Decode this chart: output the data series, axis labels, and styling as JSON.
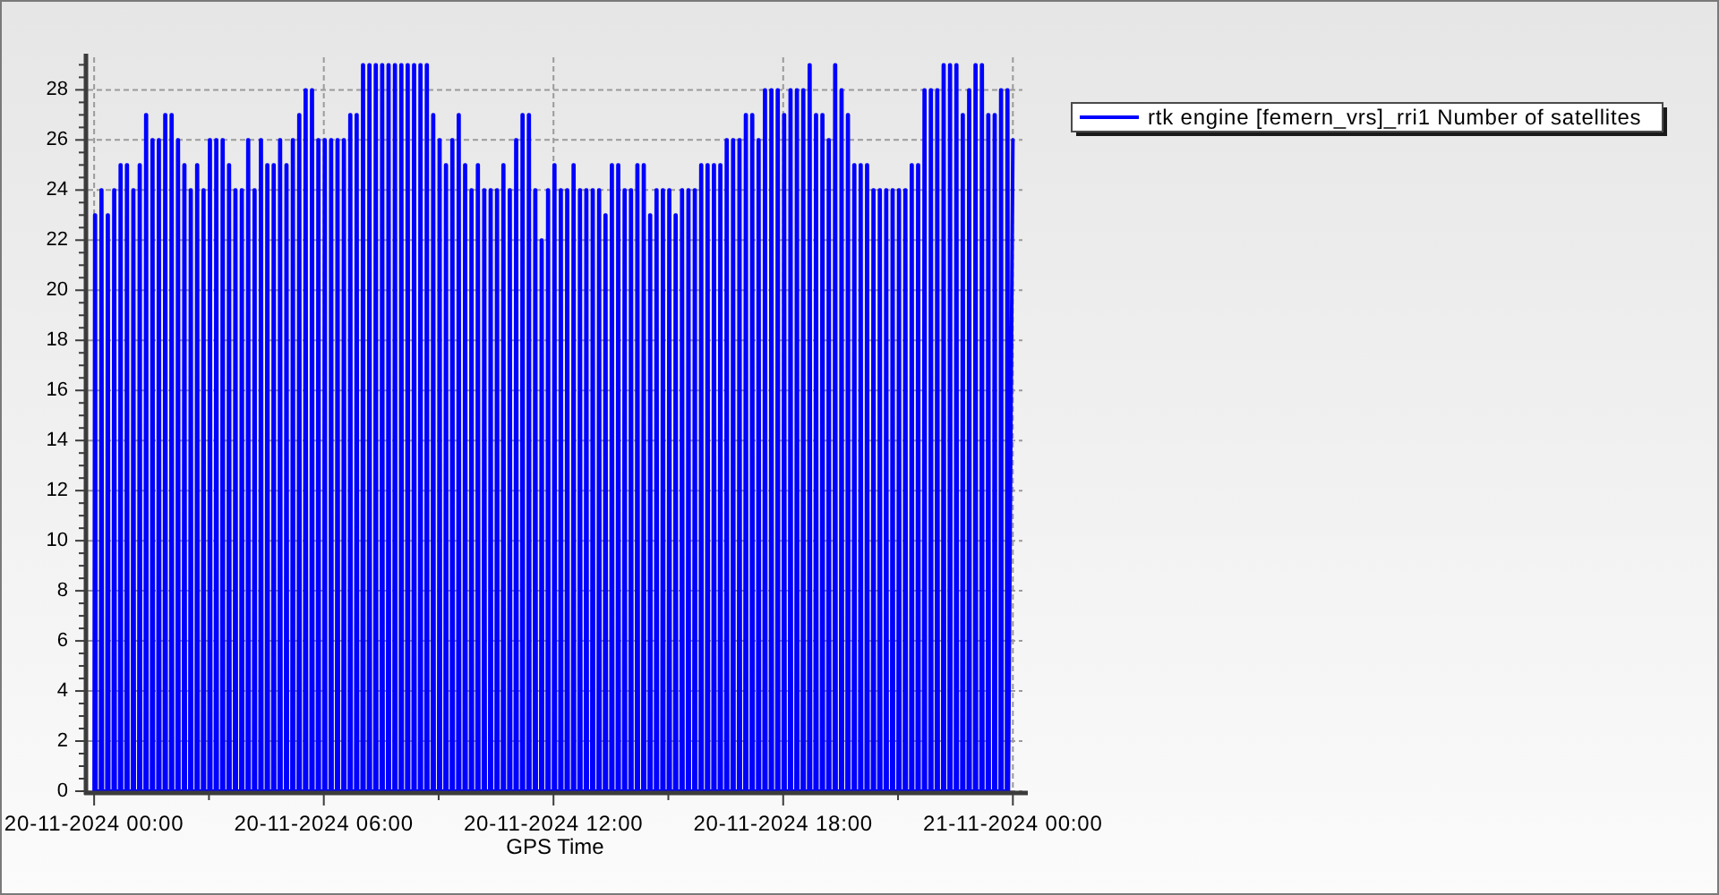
{
  "chart_data": {
    "type": "line",
    "xlabel": "GPS Time",
    "x": [
      "2024-11-20T00:00",
      "2024-11-20T00:01",
      "2024-11-20T00:02",
      "2024-11-20T00:03",
      "2024-11-20T00:10",
      "2024-11-20T00:11",
      "2024-11-20T00:12",
      "2024-11-20T00:13",
      "2024-11-20T00:20",
      "2024-11-20T00:21",
      "2024-11-20T00:22",
      "2024-11-20T00:23",
      "2024-11-20T00:30",
      "2024-11-20T00:31",
      "2024-11-20T00:32",
      "2024-11-20T00:33",
      "2024-11-20T00:40",
      "2024-11-20T00:41",
      "2024-11-20T00:42",
      "2024-11-20T00:43",
      "2024-11-20T00:50",
      "2024-11-20T00:51",
      "2024-11-20T00:52",
      "2024-11-20T00:53",
      "2024-11-20T01:00",
      "2024-11-20T01:01",
      "2024-11-20T01:02",
      "2024-11-20T01:03",
      "2024-11-20T01:10",
      "2024-11-20T01:11",
      "2024-11-20T01:12",
      "2024-11-20T01:13",
      "2024-11-20T01:20",
      "2024-11-20T01:21",
      "2024-11-20T01:22",
      "2024-11-20T01:23",
      "2024-11-20T01:30",
      "2024-11-20T01:31",
      "2024-11-20T01:32",
      "2024-11-20T01:33",
      "2024-11-20T01:40",
      "2024-11-20T01:41",
      "2024-11-20T01:42",
      "2024-11-20T01:43",
      "2024-11-20T01:50",
      "2024-11-20T01:51",
      "2024-11-20T01:52",
      "2024-11-20T01:53",
      "2024-11-20T02:00",
      "2024-11-20T02:01",
      "2024-11-20T02:02",
      "2024-11-20T02:03",
      "2024-11-20T02:10",
      "2024-11-20T02:11",
      "2024-11-20T02:12",
      "2024-11-20T02:13",
      "2024-11-20T02:20",
      "2024-11-20T02:21",
      "2024-11-20T02:22",
      "2024-11-20T02:23",
      "2024-11-20T02:30",
      "2024-11-20T02:31",
      "2024-11-20T02:32",
      "2024-11-20T02:33",
      "2024-11-20T02:40",
      "2024-11-20T02:41",
      "2024-11-20T02:42",
      "2024-11-20T02:43",
      "2024-11-20T02:50",
      "2024-11-20T02:51",
      "2024-11-20T02:52",
      "2024-11-20T02:53",
      "2024-11-20T03:00",
      "2024-11-20T03:01",
      "2024-11-20T03:02",
      "2024-11-20T03:03",
      "2024-11-20T03:10",
      "2024-11-20T03:11",
      "2024-11-20T03:12",
      "2024-11-20T03:13",
      "2024-11-20T03:20",
      "2024-11-20T03:21",
      "2024-11-20T03:22",
      "2024-11-20T03:23",
      "2024-11-20T03:30",
      "2024-11-20T03:31",
      "2024-11-20T03:32",
      "2024-11-20T03:33",
      "2024-11-20T03:40",
      "2024-11-20T03:41",
      "2024-11-20T03:42",
      "2024-11-20T03:43",
      "2024-11-20T03:50",
      "2024-11-20T03:51",
      "2024-11-20T03:52",
      "2024-11-20T03:53",
      "2024-11-20T04:00",
      "2024-11-20T04:01",
      "2024-11-20T04:02",
      "2024-11-20T04:03",
      "2024-11-20T04:10",
      "2024-11-20T04:11",
      "2024-11-20T04:12",
      "2024-11-20T04:13",
      "2024-11-20T04:20",
      "2024-11-20T04:21",
      "2024-11-20T04:22",
      "2024-11-20T04:23",
      "2024-11-20T04:30",
      "2024-11-20T04:31",
      "2024-11-20T04:32",
      "2024-11-20T04:33",
      "2024-11-20T04:40",
      "2024-11-20T04:41",
      "2024-11-20T04:42",
      "2024-11-20T04:43",
      "2024-11-20T04:50",
      "2024-11-20T04:51",
      "2024-11-20T04:52",
      "2024-11-20T04:53",
      "2024-11-20T05:00",
      "2024-11-20T05:01",
      "2024-11-20T05:02",
      "2024-11-20T05:03",
      "2024-11-20T05:10",
      "2024-11-20T05:11",
      "2024-11-20T05:12",
      "2024-11-20T05:13",
      "2024-11-20T05:20",
      "2024-11-20T05:21",
      "2024-11-20T05:22",
      "2024-11-20T05:23",
      "2024-11-20T05:30",
      "2024-11-20T05:31",
      "2024-11-20T05:32",
      "2024-11-20T05:33",
      "2024-11-20T05:40",
      "2024-11-20T05:41",
      "2024-11-20T05:42",
      "2024-11-20T05:43",
      "2024-11-20T05:50",
      "2024-11-20T05:51",
      "2024-11-20T05:52",
      "2024-11-20T05:53",
      "2024-11-20T06:00",
      "2024-11-20T06:01",
      "2024-11-20T06:02",
      "2024-11-20T06:03",
      "2024-11-20T06:10",
      "2024-11-20T06:11",
      "2024-11-20T06:12",
      "2024-11-20T06:13",
      "2024-11-20T06:20",
      "2024-11-20T06:21",
      "2024-11-20T06:22",
      "2024-11-20T06:23",
      "2024-11-20T06:30",
      "2024-11-20T06:31",
      "2024-11-20T06:32",
      "2024-11-20T06:33",
      "2024-11-20T06:40",
      "2024-11-20T06:41",
      "2024-11-20T06:42",
      "2024-11-20T06:43",
      "2024-11-20T06:50",
      "2024-11-20T06:51",
      "2024-11-20T06:52",
      "2024-11-20T06:53",
      "2024-11-20T07:00",
      "2024-11-20T07:01",
      "2024-11-20T07:02",
      "2024-11-20T07:03",
      "2024-11-20T07:10",
      "2024-11-20T07:11",
      "2024-11-20T07:12",
      "2024-11-20T07:13",
      "2024-11-20T07:20",
      "2024-11-20T07:21",
      "2024-11-20T07:22",
      "2024-11-20T07:23",
      "2024-11-20T07:30",
      "2024-11-20T07:31",
      "2024-11-20T07:32",
      "2024-11-20T07:33",
      "2024-11-20T07:40",
      "2024-11-20T07:41",
      "2024-11-20T07:42",
      "2024-11-20T07:43",
      "2024-11-20T07:50",
      "2024-11-20T07:51",
      "2024-11-20T07:52",
      "2024-11-20T07:53",
      "2024-11-20T08:00",
      "2024-11-20T08:01",
      "2024-11-20T08:02",
      "2024-11-20T08:03",
      "2024-11-20T08:10",
      "2024-11-20T08:11",
      "2024-11-20T08:12",
      "2024-11-20T08:13",
      "2024-11-20T08:20",
      "2024-11-20T08:21",
      "2024-11-20T08:22",
      "2024-11-20T08:23",
      "2024-11-20T08:30",
      "2024-11-20T08:31",
      "2024-11-20T08:32",
      "2024-11-20T08:33",
      "2024-11-20T08:40",
      "2024-11-20T08:41",
      "2024-11-20T08:42",
      "2024-11-20T08:43",
      "2024-11-20T08:50",
      "2024-11-20T08:51",
      "2024-11-20T08:52",
      "2024-11-20T08:53",
      "2024-11-20T09:00",
      "2024-11-20T09:01",
      "2024-11-20T09:02",
      "2024-11-20T09:03",
      "2024-11-20T09:10",
      "2024-11-20T09:11",
      "2024-11-20T09:12",
      "2024-11-20T09:13",
      "2024-11-20T09:20",
      "2024-11-20T09:21",
      "2024-11-20T09:22",
      "2024-11-20T09:23",
      "2024-11-20T09:30",
      "2024-11-20T09:31",
      "2024-11-20T09:32",
      "2024-11-20T09:33",
      "2024-11-20T09:40",
      "2024-11-20T09:41",
      "2024-11-20T09:42",
      "2024-11-20T09:43",
      "2024-11-20T09:50",
      "2024-11-20T09:51",
      "2024-11-20T09:52",
      "2024-11-20T09:53",
      "2024-11-20T10:00",
      "2024-11-20T10:01",
      "2024-11-20T10:02",
      "2024-11-20T10:03",
      "2024-11-20T10:10",
      "2024-11-20T10:11",
      "2024-11-20T10:12",
      "2024-11-20T10:13",
      "2024-11-20T10:20",
      "2024-11-20T10:21",
      "2024-11-20T10:22",
      "2024-11-20T10:23",
      "2024-11-20T10:30",
      "2024-11-20T10:31",
      "2024-11-20T10:32",
      "2024-11-20T10:33",
      "2024-11-20T10:40",
      "2024-11-20T10:41",
      "2024-11-20T10:42",
      "2024-11-20T10:43",
      "2024-11-20T10:50",
      "2024-11-20T10:51",
      "2024-11-20T10:52",
      "2024-11-20T10:53",
      "2024-11-20T11:00",
      "2024-11-20T11:01",
      "2024-11-20T11:02",
      "2024-11-20T11:03",
      "2024-11-20T11:10",
      "2024-11-20T11:11",
      "2024-11-20T11:12",
      "2024-11-20T11:13",
      "2024-11-20T11:20",
      "2024-11-20T11:21",
      "2024-11-20T11:22",
      "2024-11-20T11:23",
      "2024-11-20T11:30",
      "2024-11-20T11:31",
      "2024-11-20T11:32",
      "2024-11-20T11:33",
      "2024-11-20T11:40",
      "2024-11-20T11:41",
      "2024-11-20T11:42",
      "2024-11-20T11:43",
      "2024-11-20T11:50",
      "2024-11-20T11:51",
      "2024-11-20T11:52",
      "2024-11-20T11:53",
      "2024-11-20T12:00",
      "2024-11-20T12:01",
      "2024-11-20T12:02",
      "2024-11-20T12:03",
      "2024-11-20T12:10",
      "2024-11-20T12:11",
      "2024-11-20T12:12",
      "2024-11-20T12:13",
      "2024-11-20T12:20",
      "2024-11-20T12:21",
      "2024-11-20T12:22",
      "2024-11-20T12:23",
      "2024-11-20T12:30",
      "2024-11-20T12:31",
      "2024-11-20T12:32",
      "2024-11-20T12:33",
      "2024-11-20T12:40",
      "2024-11-20T12:41",
      "2024-11-20T12:42",
      "2024-11-20T12:43",
      "2024-11-20T12:50",
      "2024-11-20T12:51",
      "2024-11-20T12:52",
      "2024-11-20T12:53",
      "2024-11-20T13:00",
      "2024-11-20T13:01",
      "2024-11-20T13:02",
      "2024-11-20T13:03",
      "2024-11-20T13:10",
      "2024-11-20T13:11",
      "2024-11-20T13:12",
      "2024-11-20T13:13",
      "2024-11-20T13:20",
      "2024-11-20T13:21",
      "2024-11-20T13:22",
      "2024-11-20T13:23",
      "2024-11-20T13:30",
      "2024-11-20T13:31",
      "2024-11-20T13:32",
      "2024-11-20T13:33",
      "2024-11-20T13:40",
      "2024-11-20T13:41",
      "2024-11-20T13:42",
      "2024-11-20T13:43",
      "2024-11-20T13:50",
      "2024-11-20T13:51",
      "2024-11-20T13:52",
      "2024-11-20T13:53",
      "2024-11-20T14:00",
      "2024-11-20T14:01",
      "2024-11-20T14:02",
      "2024-11-20T14:03",
      "2024-11-20T14:10",
      "2024-11-20T14:11",
      "2024-11-20T14:12",
      "2024-11-20T14:13",
      "2024-11-20T14:20",
      "2024-11-20T14:21",
      "2024-11-20T14:22",
      "2024-11-20T14:23",
      "2024-11-20T14:30",
      "2024-11-20T14:31",
      "2024-11-20T14:32",
      "2024-11-20T14:33",
      "2024-11-20T14:40",
      "2024-11-20T14:41",
      "2024-11-20T14:42",
      "2024-11-20T14:43",
      "2024-11-20T14:50",
      "2024-11-20T14:51",
      "2024-11-20T14:52",
      "2024-11-20T14:53",
      "2024-11-20T15:00",
      "2024-11-20T15:01",
      "2024-11-20T15:02",
      "2024-11-20T15:03",
      "2024-11-20T15:10",
      "2024-11-20T15:11",
      "2024-11-20T15:12",
      "2024-11-20T15:13",
      "2024-11-20T15:20",
      "2024-11-20T15:21",
      "2024-11-20T15:22",
      "2024-11-20T15:23",
      "2024-11-20T15:30",
      "2024-11-20T15:31",
      "2024-11-20T15:32",
      "2024-11-20T15:33",
      "2024-11-20T15:40",
      "2024-11-20T15:41",
      "2024-11-20T15:42",
      "2024-11-20T15:43",
      "2024-11-20T15:50",
      "2024-11-20T15:51",
      "2024-11-20T15:52",
      "2024-11-20T15:53",
      "2024-11-20T16:00",
      "2024-11-20T16:01",
      "2024-11-20T16:02",
      "2024-11-20T16:03",
      "2024-11-20T16:10",
      "2024-11-20T16:11",
      "2024-11-20T16:12",
      "2024-11-20T16:13",
      "2024-11-20T16:20",
      "2024-11-20T16:21",
      "2024-11-20T16:22",
      "2024-11-20T16:23",
      "2024-11-20T16:30",
      "2024-11-20T16:31",
      "2024-11-20T16:32",
      "2024-11-20T16:33",
      "2024-11-20T16:40",
      "2024-11-20T16:41",
      "2024-11-20T16:42",
      "2024-11-20T16:43",
      "2024-11-20T16:50",
      "2024-11-20T16:51",
      "2024-11-20T16:52",
      "2024-11-20T16:53",
      "2024-11-20T17:00",
      "2024-11-20T17:01",
      "2024-11-20T17:02",
      "2024-11-20T17:03",
      "2024-11-20T17:10",
      "2024-11-20T17:11",
      "2024-11-20T17:12",
      "2024-11-20T17:13",
      "2024-11-20T17:20",
      "2024-11-20T17:21",
      "2024-11-20T17:22",
      "2024-11-20T17:23",
      "2024-11-20T17:30",
      "2024-11-20T17:31",
      "2024-11-20T17:32",
      "2024-11-20T17:33",
      "2024-11-20T17:40",
      "2024-11-20T17:41",
      "2024-11-20T17:42",
      "2024-11-20T17:43",
      "2024-11-20T17:50",
      "2024-11-20T17:51",
      "2024-11-20T17:52",
      "2024-11-20T17:53",
      "2024-11-20T18:00",
      "2024-11-20T18:01",
      "2024-11-20T18:02",
      "2024-11-20T18:03",
      "2024-11-20T18:10",
      "2024-11-20T18:11",
      "2024-11-20T18:12",
      "2024-11-20T18:13",
      "2024-11-20T18:20",
      "2024-11-20T18:21",
      "2024-11-20T18:22",
      "2024-11-20T18:23",
      "2024-11-20T18:30",
      "2024-11-20T18:31",
      "2024-11-20T18:32",
      "2024-11-20T18:33",
      "2024-11-20T18:40",
      "2024-11-20T18:41",
      "2024-11-20T18:42",
      "2024-11-20T18:43",
      "2024-11-20T18:50",
      "2024-11-20T18:51",
      "2024-11-20T18:52",
      "2024-11-20T18:53",
      "2024-11-20T19:00",
      "2024-11-20T19:01",
      "2024-11-20T19:02",
      "2024-11-20T19:03",
      "2024-11-20T19:10",
      "2024-11-20T19:11",
      "2024-11-20T19:12",
      "2024-11-20T19:13",
      "2024-11-20T19:20",
      "2024-11-20T19:21",
      "2024-11-20T19:22",
      "2024-11-20T19:23",
      "2024-11-20T19:30",
      "2024-11-20T19:31",
      "2024-11-20T19:32",
      "2024-11-20T19:33",
      "2024-11-20T19:40",
      "2024-11-20T19:41",
      "2024-11-20T19:42",
      "2024-11-20T19:43",
      "2024-11-20T19:50",
      "2024-11-20T19:51",
      "2024-11-20T19:52",
      "2024-11-20T19:53",
      "2024-11-20T20:00",
      "2024-11-20T20:01",
      "2024-11-20T20:02",
      "2024-11-20T20:03",
      "2024-11-20T20:10",
      "2024-11-20T20:11",
      "2024-11-20T20:12",
      "2024-11-20T20:13",
      "2024-11-20T20:20",
      "2024-11-20T20:21",
      "2024-11-20T20:22",
      "2024-11-20T20:23",
      "2024-11-20T20:30",
      "2024-11-20T20:31",
      "2024-11-20T20:32",
      "2024-11-20T20:33",
      "2024-11-20T20:40",
      "2024-11-20T20:41",
      "2024-11-20T20:42",
      "2024-11-20T20:43",
      "2024-11-20T20:50",
      "2024-11-20T20:51",
      "2024-11-20T20:52",
      "2024-11-20T20:53",
      "2024-11-20T21:00",
      "2024-11-20T21:01",
      "2024-11-20T21:02",
      "2024-11-20T21:03",
      "2024-11-20T21:10",
      "2024-11-20T21:11",
      "2024-11-20T21:12",
      "2024-11-20T21:13",
      "2024-11-20T21:20",
      "2024-11-20T21:21",
      "2024-11-20T21:22",
      "2024-11-20T21:23",
      "2024-11-20T21:30",
      "2024-11-20T21:31",
      "2024-11-20T21:32",
      "2024-11-20T21:33",
      "2024-11-20T21:40",
      "2024-11-20T21:41",
      "2024-11-20T21:42",
      "2024-11-20T21:43",
      "2024-11-20T21:50",
      "2024-11-20T21:51",
      "2024-11-20T21:52",
      "2024-11-20T21:53",
      "2024-11-20T22:00",
      "2024-11-20T22:01",
      "2024-11-20T22:02",
      "2024-11-20T22:03",
      "2024-11-20T22:10",
      "2024-11-20T22:11",
      "2024-11-20T22:12",
      "2024-11-20T22:13",
      "2024-11-20T22:20",
      "2024-11-20T22:21",
      "2024-11-20T22:22",
      "2024-11-20T22:23",
      "2024-11-20T22:30",
      "2024-11-20T22:31",
      "2024-11-20T22:32",
      "2024-11-20T22:33",
      "2024-11-20T22:40",
      "2024-11-20T22:41",
      "2024-11-20T22:42",
      "2024-11-20T22:43",
      "2024-11-20T22:50",
      "2024-11-20T22:51",
      "2024-11-20T22:52",
      "2024-11-20T22:53",
      "2024-11-20T23:00",
      "2024-11-20T23:01",
      "2024-11-20T23:02",
      "2024-11-20T23:03",
      "2024-11-20T23:10",
      "2024-11-20T23:11",
      "2024-11-20T23:12",
      "2024-11-20T23:13",
      "2024-11-20T23:20",
      "2024-11-20T23:21",
      "2024-11-20T23:22",
      "2024-11-20T23:23",
      "2024-11-20T23:30",
      "2024-11-20T23:31",
      "2024-11-20T23:32",
      "2024-11-20T23:33",
      "2024-11-20T23:40",
      "2024-11-20T23:41",
      "2024-11-20T23:42",
      "2024-11-20T23:43",
      "2024-11-20T23:50",
      "2024-11-20T23:51",
      "2024-11-20T23:52",
      "2024-11-20T23:53",
      "2024-11-21T00:00"
    ],
    "series": [
      {
        "name": "rtk engine [femern_vrs]_rri1 Number of satellites",
        "color": "#0000ff",
        "values": [
          0,
          23,
          23,
          0,
          0,
          24,
          24,
          0,
          0,
          23,
          23,
          0,
          0,
          24,
          24,
          0,
          0,
          25,
          25,
          0,
          0,
          25,
          25,
          0,
          0,
          24,
          24,
          0,
          0,
          25,
          25,
          0,
          0,
          27,
          27,
          0,
          0,
          26,
          26,
          0,
          0,
          26,
          26,
          0,
          0,
          27,
          27,
          0,
          0,
          27,
          27,
          0,
          0,
          26,
          26,
          0,
          0,
          25,
          25,
          0,
          0,
          24,
          24,
          0,
          0,
          25,
          25,
          0,
          0,
          24,
          24,
          0,
          0,
          26,
          26,
          0,
          0,
          26,
          26,
          0,
          0,
          26,
          26,
          0,
          0,
          25,
          25,
          0,
          0,
          24,
          24,
          0,
          0,
          24,
          24,
          0,
          0,
          26,
          26,
          0,
          0,
          24,
          24,
          0,
          0,
          26,
          26,
          0,
          0,
          25,
          25,
          0,
          0,
          25,
          25,
          0,
          0,
          26,
          26,
          0,
          0,
          25,
          25,
          0,
          0,
          26,
          26,
          0,
          0,
          27,
          27,
          0,
          0,
          28,
          28,
          0,
          0,
          28,
          28,
          0,
          0,
          26,
          26,
          0,
          0,
          26,
          26,
          0,
          0,
          26,
          26,
          0,
          0,
          26,
          26,
          0,
          0,
          26,
          26,
          0,
          0,
          27,
          27,
          0,
          0,
          27,
          27,
          0,
          0,
          29,
          29,
          0,
          0,
          29,
          29,
          0,
          0,
          29,
          29,
          0,
          0,
          29,
          29,
          0,
          0,
          29,
          29,
          0,
          0,
          29,
          29,
          0,
          0,
          29,
          29,
          0,
          0,
          29,
          29,
          0,
          0,
          29,
          29,
          0,
          0,
          29,
          29,
          0,
          0,
          29,
          29,
          0,
          0,
          27,
          27,
          0,
          0,
          26,
          26,
          0,
          0,
          25,
          25,
          0,
          0,
          26,
          26,
          0,
          0,
          27,
          27,
          0,
          0,
          25,
          25,
          0,
          0,
          24,
          24,
          0,
          0,
          25,
          25,
          0,
          0,
          24,
          24,
          0,
          0,
          24,
          24,
          0,
          0,
          24,
          24,
          0,
          0,
          25,
          25,
          0,
          0,
          24,
          24,
          0,
          0,
          26,
          26,
          0,
          0,
          27,
          27,
          0,
          0,
          27,
          27,
          0,
          0,
          24,
          24,
          0,
          0,
          22,
          22,
          0,
          0,
          24,
          24,
          0,
          0,
          25,
          25,
          0,
          0,
          24,
          24,
          0,
          0,
          24,
          24,
          0,
          0,
          25,
          25,
          0,
          0,
          24,
          24,
          0,
          0,
          24,
          24,
          0,
          0,
          24,
          24,
          0,
          0,
          24,
          24,
          0,
          0,
          23,
          23,
          0,
          0,
          25,
          25,
          0,
          0,
          25,
          25,
          0,
          0,
          24,
          24,
          0,
          0,
          24,
          24,
          0,
          0,
          25,
          25,
          0,
          0,
          25,
          25,
          0,
          0,
          23,
          23,
          0,
          0,
          24,
          24,
          0,
          0,
          24,
          24,
          0,
          0,
          24,
          24,
          0,
          0,
          23,
          23,
          0,
          0,
          24,
          24,
          0,
          0,
          24,
          24,
          0,
          0,
          24,
          24,
          0,
          0,
          25,
          25,
          0,
          0,
          25,
          25,
          0,
          0,
          25,
          25,
          0,
          0,
          25,
          25,
          0,
          0,
          26,
          26,
          0,
          0,
          26,
          26,
          0,
          0,
          26,
          26,
          0,
          0,
          27,
          27,
          0,
          0,
          27,
          27,
          0,
          0,
          26,
          26,
          0,
          0,
          28,
          28,
          0,
          0,
          28,
          28,
          0,
          0,
          28,
          28,
          0,
          0,
          27,
          27,
          0,
          0,
          28,
          28,
          0,
          0,
          28,
          28,
          0,
          0,
          28,
          28,
          0,
          0,
          29,
          29,
          0,
          0,
          27,
          27,
          0,
          0,
          27,
          27,
          0,
          0,
          26,
          26,
          0,
          0,
          29,
          29,
          0,
          0,
          28,
          28,
          0,
          0,
          27,
          27,
          0,
          0,
          25,
          25,
          0,
          0,
          25,
          25,
          0,
          0,
          25,
          25,
          0,
          0,
          24,
          24,
          0,
          0,
          24,
          24,
          0,
          0,
          24,
          24,
          0,
          0,
          24,
          24,
          0,
          0,
          24,
          24,
          0,
          0,
          24,
          24,
          0,
          0,
          25,
          25,
          0,
          0,
          25,
          25,
          0,
          0,
          28,
          28,
          0,
          0,
          28,
          28,
          0,
          0,
          28,
          28,
          0,
          0,
          29,
          29,
          0,
          0,
          29,
          29,
          0,
          0,
          29,
          29,
          0,
          0,
          27,
          27,
          0,
          0,
          28,
          28,
          0,
          0,
          29,
          29,
          0,
          0,
          29,
          29,
          0,
          0,
          27,
          27,
          0,
          0,
          27,
          27,
          0,
          0,
          28,
          28,
          0,
          0,
          28,
          28,
          0,
          26
        ]
      }
    ],
    "xlim": [
      "2024-11-19T23:50",
      "2024-11-21T00:15"
    ],
    "xticks": [
      {
        "value": "2024-11-20T00:00",
        "label": "20-11-2024 00:00"
      },
      {
        "value": "2024-11-20T03:00",
        "label": null
      },
      {
        "value": "2024-11-20T06:00",
        "label": "20-11-2024 06:00"
      },
      {
        "value": "2024-11-20T09:00",
        "label": null
      },
      {
        "value": "2024-11-20T12:00",
        "label": "20-11-2024 12:00"
      },
      {
        "value": "2024-11-20T15:00",
        "label": null
      },
      {
        "value": "2024-11-20T18:00",
        "label": "20-11-2024 18:00"
      },
      {
        "value": "2024-11-20T21:00",
        "label": null
      },
      {
        "value": "2024-11-21T00:00",
        "label": "21-11-2024 00:00"
      }
    ],
    "ylim": [
      0,
      29.3
    ],
    "yticks": [
      0,
      {
        "value": 0.5,
        "label": null
      },
      {
        "value": 1,
        "label": null
      },
      {
        "value": 1.5,
        "label": null
      },
      2,
      {
        "value": 2.5,
        "label": null
      },
      {
        "value": 3,
        "label": null
      },
      {
        "value": 3.5,
        "label": null
      },
      4,
      {
        "value": 4.5,
        "label": null
      },
      {
        "value": 5,
        "label": null
      },
      {
        "value": 5.5,
        "label": null
      },
      6,
      {
        "value": 6.5,
        "label": null
      },
      {
        "value": 7,
        "label": null
      },
      {
        "value": 7.5,
        "label": null
      },
      8,
      {
        "value": 8.5,
        "label": null
      },
      {
        "value": 9,
        "label": null
      },
      {
        "value": 9.5,
        "label": null
      },
      10,
      {
        "value": 10.5,
        "label": null
      },
      {
        "value": 11,
        "label": null
      },
      {
        "value": 11.5,
        "label": null
      },
      12,
      {
        "value": 12.5,
        "label": null
      },
      {
        "value": 13,
        "label": null
      },
      {
        "value": 13.5,
        "label": null
      },
      14,
      {
        "value": 14.5,
        "label": null
      },
      {
        "value": 15,
        "label": null
      },
      {
        "value": 15.5,
        "label": null
      },
      16,
      {
        "value": 16.5,
        "label": null
      },
      {
        "value": 17,
        "label": null
      },
      {
        "value": 17.5,
        "label": null
      },
      18,
      {
        "value": 18.5,
        "label": null
      },
      {
        "value": 19,
        "label": null
      },
      {
        "value": 19.5,
        "label": null
      },
      20,
      {
        "value": 20.5,
        "label": null
      },
      {
        "value": 21,
        "label": null
      },
      {
        "value": 21.5,
        "label": null
      },
      22,
      {
        "value": 22.5,
        "label": null
      },
      {
        "value": 23,
        "label": null
      },
      {
        "value": 23.5,
        "label": null
      },
      24,
      {
        "value": 24.5,
        "label": null
      },
      {
        "value": 25,
        "label": null
      },
      {
        "value": 25.5,
        "label": null
      },
      26,
      {
        "value": 26.5,
        "label": null
      },
      {
        "value": 27,
        "label": null
      },
      {
        "value": 27.5,
        "label": null
      },
      28,
      {
        "value": 28.5,
        "label": null
      },
      {
        "value": 29,
        "label": null
      }
    ],
    "grid": true,
    "legend": "top right"
  }
}
